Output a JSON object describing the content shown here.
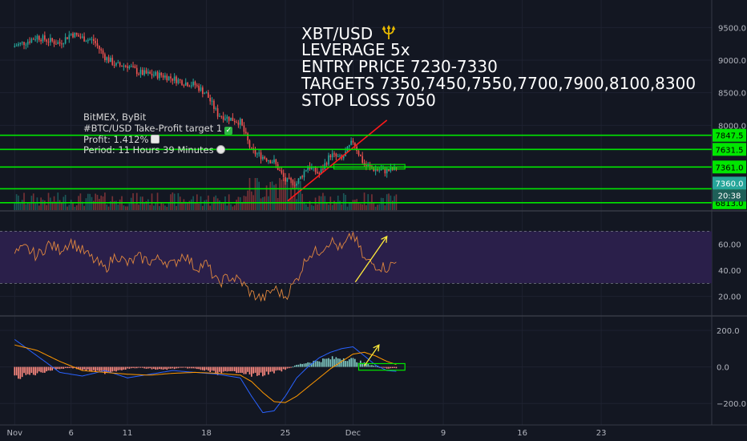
{
  "overlay": {
    "pair": "XBT/USD",
    "pair_icon": "trident-icon",
    "leverage": "LEVERAGE 5x",
    "entry": "ENTRY PRICE 7230-7330",
    "targets": "TARGETS 7350,7450,7550,7700,7900,8100,8300",
    "stop": "STOP LOSS 7050"
  },
  "signal": {
    "exchanges": "BitMEX, ByBit",
    "target_line": "#BTC/USD Take-Profit target 1",
    "profit": "Profit: 1.412%",
    "period": "Period: 11 Hours 39 Minutes",
    "icons": [
      "check-mark-icon",
      "chart-icon",
      "clock-icon"
    ]
  },
  "colors": {
    "background": "#131722",
    "up": "#26a69a",
    "down": "#ef5350",
    "level_line": "#00e600",
    "trend_line": "#ff1a1a",
    "rsi_band": "#2a1f4a",
    "rsi_line": "#e0873e",
    "arrow": "#ffeb3b",
    "macd_line": "#2962ff",
    "signal_line": "#ff9800"
  },
  "chart_data": [
    {
      "type": "candlestick",
      "name": "price",
      "ylim": [
        6700,
        9800
      ],
      "y_ticks": [
        9500,
        9000,
        8500,
        8000
      ],
      "y_tick_labels": [
        "9500.0",
        "9000.0",
        "8500.0",
        "8000.0"
      ],
      "x_ticks": [
        {
          "day": 0,
          "label": "Nov"
        },
        {
          "day": 5,
          "label": "6"
        },
        {
          "day": 10,
          "label": "11"
        },
        {
          "day": 17,
          "label": "18"
        },
        {
          "day": 24,
          "label": "25"
        },
        {
          "day": 30,
          "label": "Dec"
        },
        {
          "day": 38,
          "label": "9"
        },
        {
          "day": 45,
          "label": "16"
        },
        {
          "day": 52,
          "label": "23"
        }
      ],
      "xlim_days": [
        -1.3,
        61.8
      ],
      "price_path": [
        [
          0,
          9220
        ],
        [
          1,
          9280
        ],
        [
          2,
          9360
        ],
        [
          3,
          9300
        ],
        [
          4,
          9260
        ],
        [
          5,
          9410
        ],
        [
          6,
          9340
        ],
        [
          7,
          9300
        ],
        [
          8,
          9050
        ],
        [
          9,
          8920
        ],
        [
          10,
          8920
        ],
        [
          11,
          8810
        ],
        [
          12,
          8780
        ],
        [
          13,
          8770
        ],
        [
          14,
          8720
        ],
        [
          15,
          8660
        ],
        [
          16,
          8620
        ],
        [
          17,
          8480
        ],
        [
          18,
          8170
        ],
        [
          19,
          8110
        ],
        [
          20,
          8050
        ],
        [
          21,
          7600
        ],
        [
          22,
          7520
        ],
        [
          23,
          7440
        ],
        [
          24,
          7150
        ],
        [
          25,
          7110
        ],
        [
          26,
          7380
        ],
        [
          27,
          7250
        ],
        [
          28,
          7550
        ],
        [
          29,
          7480
        ],
        [
          30,
          7760
        ],
        [
          31,
          7390
        ],
        [
          32,
          7320
        ],
        [
          33,
          7300
        ],
        [
          34,
          7340
        ]
      ],
      "levels": [
        {
          "value": 7847.5,
          "label": "7847.5"
        },
        {
          "value": 7631.5,
          "label": "7631.5"
        },
        {
          "value": 7361.0,
          "label": "7361.0"
        },
        {
          "value": 7027.0,
          "label": "7027.0"
        },
        {
          "value": 6813.0,
          "label": "6813.0"
        }
      ],
      "current_price": {
        "value": 7360.0,
        "label": "7360.0",
        "countdown": "20:38"
      },
      "trend_line": [
        [
          24.2,
          6840
        ],
        [
          33.0,
          8080
        ]
      ]
    },
    {
      "type": "line",
      "name": "RSI",
      "ylim": [
        5,
        85
      ],
      "band": [
        30,
        70
      ],
      "y_ticks": [
        60,
        40,
        20
      ],
      "y_tick_labels": [
        "60.00",
        "40.00",
        "20.00"
      ],
      "values": [
        [
          0,
          53
        ],
        [
          1,
          57
        ],
        [
          2,
          51
        ],
        [
          3,
          60
        ],
        [
          4,
          56
        ],
        [
          5,
          62
        ],
        [
          6,
          55
        ],
        [
          7,
          48
        ],
        [
          8,
          41
        ],
        [
          9,
          52
        ],
        [
          10,
          45
        ],
        [
          11,
          50
        ],
        [
          12,
          47
        ],
        [
          13,
          49
        ],
        [
          14,
          44
        ],
        [
          15,
          53
        ],
        [
          16,
          42
        ],
        [
          17,
          45
        ],
        [
          18,
          30
        ],
        [
          19,
          35
        ],
        [
          20,
          32
        ],
        [
          21,
          22
        ],
        [
          22,
          18
        ],
        [
          23,
          26
        ],
        [
          24,
          20
        ],
        [
          25,
          33
        ],
        [
          26,
          52
        ],
        [
          27,
          55
        ],
        [
          28,
          63
        ],
        [
          29,
          56
        ],
        [
          30,
          68
        ],
        [
          31,
          48
        ],
        [
          32,
          44
        ],
        [
          33,
          42
        ],
        [
          34,
          47
        ]
      ],
      "arrow": [
        [
          30.2,
          31
        ],
        [
          33.0,
          66
        ]
      ]
    },
    {
      "type": "macd",
      "name": "MACD",
      "ylim": [
        -300,
        270
      ],
      "y_ticks": [
        200,
        0,
        -200
      ],
      "y_tick_labels": [
        "200.0",
        "0.0",
        "−200.0"
      ],
      "histogram": [
        [
          0,
          -60
        ],
        [
          1,
          -45
        ],
        [
          2,
          -35
        ],
        [
          3,
          -20
        ],
        [
          4,
          -10
        ],
        [
          5,
          -5
        ],
        [
          6,
          -15
        ],
        [
          7,
          -25
        ],
        [
          8,
          -30
        ],
        [
          9,
          -20
        ],
        [
          10,
          -10
        ],
        [
          11,
          -5
        ],
        [
          12,
          -10
        ],
        [
          13,
          -15
        ],
        [
          14,
          -10
        ],
        [
          15,
          -5
        ],
        [
          16,
          -10
        ],
        [
          17,
          -20
        ],
        [
          18,
          -35
        ],
        [
          19,
          -30
        ],
        [
          20,
          -25
        ],
        [
          21,
          -45
        ],
        [
          22,
          -40
        ],
        [
          23,
          -30
        ],
        [
          24,
          -15
        ],
        [
          25,
          10
        ],
        [
          26,
          25
        ],
        [
          27,
          35
        ],
        [
          28,
          45
        ],
        [
          29,
          50
        ],
        [
          30,
          40
        ],
        [
          31,
          20
        ],
        [
          32,
          5
        ],
        [
          33,
          -10
        ],
        [
          34,
          -5
        ]
      ],
      "macd": [
        [
          0,
          150
        ],
        [
          2,
          60
        ],
        [
          4,
          -30
        ],
        [
          6,
          -50
        ],
        [
          8,
          -20
        ],
        [
          10,
          -60
        ],
        [
          12,
          -40
        ],
        [
          14,
          -20
        ],
        [
          16,
          -30
        ],
        [
          18,
          -40
        ],
        [
          20,
          -60
        ],
        [
          21,
          -160
        ],
        [
          22,
          -250
        ],
        [
          23,
          -240
        ],
        [
          24,
          -160
        ],
        [
          25,
          -60
        ],
        [
          26,
          0
        ],
        [
          27,
          50
        ],
        [
          28,
          80
        ],
        [
          29,
          100
        ],
        [
          30,
          110
        ],
        [
          31,
          60
        ],
        [
          32,
          10
        ],
        [
          33,
          -20
        ],
        [
          34,
          -25
        ]
      ],
      "signal": [
        [
          0,
          120
        ],
        [
          2,
          90
        ],
        [
          4,
          30
        ],
        [
          6,
          -20
        ],
        [
          8,
          -30
        ],
        [
          10,
          -40
        ],
        [
          12,
          -45
        ],
        [
          14,
          -35
        ],
        [
          16,
          -30
        ],
        [
          18,
          -35
        ],
        [
          20,
          -45
        ],
        [
          21,
          -80
        ],
        [
          22,
          -140
        ],
        [
          23,
          -190
        ],
        [
          24,
          -195
        ],
        [
          25,
          -160
        ],
        [
          26,
          -110
        ],
        [
          27,
          -60
        ],
        [
          28,
          -10
        ],
        [
          29,
          30
        ],
        [
          30,
          70
        ],
        [
          31,
          80
        ],
        [
          32,
          60
        ],
        [
          33,
          30
        ],
        [
          34,
          10
        ]
      ],
      "arrow": [
        [
          31.0,
          5
        ],
        [
          32.3,
          120
        ]
      ]
    }
  ]
}
